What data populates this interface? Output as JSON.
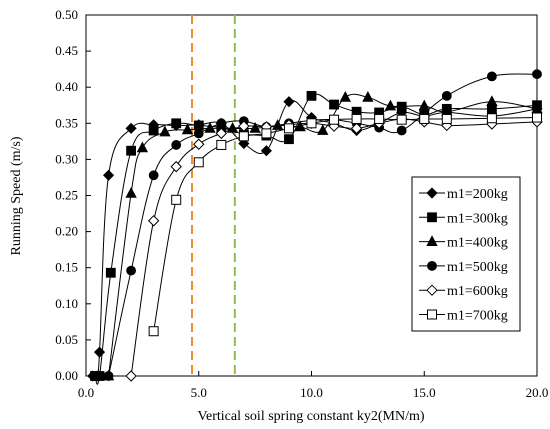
{
  "chart_data": {
    "type": "line",
    "xlabel": "Vertical soil spring constant ky2(MN/m)",
    "ylabel": "Running Speed (m/s)",
    "xlim": [
      0,
      20
    ],
    "ylim": [
      0,
      0.5
    ],
    "x_ticks": [
      "0.0",
      "5.0",
      "10.0",
      "15.0",
      "20.0"
    ],
    "y_ticks": [
      "0.00",
      "0.05",
      "0.10",
      "0.15",
      "0.20",
      "0.25",
      "0.30",
      "0.35",
      "0.40",
      "0.45",
      "0.50"
    ],
    "grid": false,
    "legend_position": "right",
    "vertical_lines": [
      {
        "x": 4.7,
        "color": "#f28a2e",
        "style": "dashed"
      },
      {
        "x": 6.6,
        "color": "#8cbf4a",
        "style": "dashed"
      }
    ],
    "series": [
      {
        "name": "m1=200kg",
        "marker": "diamond-filled",
        "points": [
          [
            0.3,
            0
          ],
          [
            0.5,
            0
          ],
          [
            0.6,
            0.033
          ],
          [
            1.0,
            0.278
          ],
          [
            2.0,
            0.343
          ],
          [
            3.0,
            0.348
          ],
          [
            4.0,
            0.347
          ],
          [
            5.0,
            0.348
          ],
          [
            6.0,
            0.35
          ],
          [
            7.0,
            0.322
          ],
          [
            8.0,
            0.312
          ],
          [
            9.0,
            0.38
          ],
          [
            10.0,
            0.358
          ],
          [
            11.0,
            0.35
          ],
          [
            12.0,
            0.34
          ],
          [
            13.0,
            0.35
          ],
          [
            14.0,
            0.365
          ],
          [
            15.0,
            0.36
          ],
          [
            16.0,
            0.365
          ],
          [
            18.0,
            0.36
          ],
          [
            20.0,
            0.37
          ]
        ]
      },
      {
        "name": "m1=300kg",
        "marker": "square-filled",
        "points": [
          [
            0.4,
            0
          ],
          [
            0.6,
            0
          ],
          [
            1.1,
            0.143
          ],
          [
            2.0,
            0.312
          ],
          [
            3.0,
            0.34
          ],
          [
            4.0,
            0.35
          ],
          [
            5.0,
            0.347
          ],
          [
            6.0,
            0.344
          ],
          [
            7.0,
            0.335
          ],
          [
            8.0,
            0.333
          ],
          [
            9.0,
            0.328
          ],
          [
            10.0,
            0.388
          ],
          [
            11.0,
            0.376
          ],
          [
            12.0,
            0.366
          ],
          [
            13.0,
            0.365
          ],
          [
            14.0,
            0.373
          ],
          [
            15.0,
            0.362
          ],
          [
            16.0,
            0.37
          ],
          [
            18.0,
            0.37
          ],
          [
            20.0,
            0.375
          ]
        ]
      },
      {
        "name": "m1=400kg",
        "marker": "triangle-filled",
        "points": [
          [
            1.0,
            0
          ],
          [
            2.0,
            0.253
          ],
          [
            2.5,
            0.316
          ],
          [
            3.5,
            0.338
          ],
          [
            4.5,
            0.341
          ],
          [
            5.5,
            0.343
          ],
          [
            6.5,
            0.343
          ],
          [
            7.5,
            0.343
          ],
          [
            8.5,
            0.347
          ],
          [
            9.5,
            0.345
          ],
          [
            10.5,
            0.34
          ],
          [
            11.5,
            0.386
          ],
          [
            12.5,
            0.386
          ],
          [
            13.5,
            0.374
          ],
          [
            15.0,
            0.374
          ],
          [
            16.0,
            0.366
          ],
          [
            18.0,
            0.38
          ],
          [
            20.0,
            0.37
          ]
        ]
      },
      {
        "name": "m1=500kg",
        "marker": "circle-filled",
        "points": [
          [
            1.0,
            0
          ],
          [
            2.0,
            0.146
          ],
          [
            3.0,
            0.278
          ],
          [
            4.0,
            0.32
          ],
          [
            5.0,
            0.336
          ],
          [
            6.0,
            0.35
          ],
          [
            7.0,
            0.353
          ],
          [
            8.0,
            0.345
          ],
          [
            9.0,
            0.35
          ],
          [
            10.0,
            0.354
          ],
          [
            11.0,
            0.355
          ],
          [
            12.0,
            0.35
          ],
          [
            13.0,
            0.344
          ],
          [
            14.0,
            0.34
          ],
          [
            16.0,
            0.388
          ],
          [
            18.0,
            0.415
          ],
          [
            20.0,
            0.418
          ]
        ]
      },
      {
        "name": "m1=600kg",
        "marker": "diamond-open",
        "points": [
          [
            2.0,
            0
          ],
          [
            3.0,
            0.215
          ],
          [
            4.0,
            0.29
          ],
          [
            5.0,
            0.321
          ],
          [
            6.0,
            0.336
          ],
          [
            7.0,
            0.346
          ],
          [
            8.0,
            0.345
          ],
          [
            9.0,
            0.348
          ],
          [
            10.0,
            0.35
          ],
          [
            11.0,
            0.346
          ],
          [
            12.0,
            0.343
          ],
          [
            13.0,
            0.35
          ],
          [
            14.0,
            0.356
          ],
          [
            15.0,
            0.352
          ],
          [
            16.0,
            0.347
          ],
          [
            18.0,
            0.349
          ],
          [
            20.0,
            0.352
          ]
        ]
      },
      {
        "name": "m1=700kg",
        "marker": "square-open",
        "points": [
          [
            3.0,
            0.062
          ],
          [
            4.0,
            0.244
          ],
          [
            5.0,
            0.296
          ],
          [
            6.0,
            0.32
          ],
          [
            7.0,
            0.332
          ],
          [
            8.0,
            0.336
          ],
          [
            9.0,
            0.343
          ],
          [
            10.0,
            0.35
          ],
          [
            11.0,
            0.355
          ],
          [
            12.0,
            0.356
          ],
          [
            13.0,
            0.356
          ],
          [
            14.0,
            0.355
          ],
          [
            15.0,
            0.356
          ],
          [
            16.0,
            0.356
          ],
          [
            18.0,
            0.357
          ],
          [
            20.0,
            0.358
          ]
        ]
      }
    ]
  }
}
